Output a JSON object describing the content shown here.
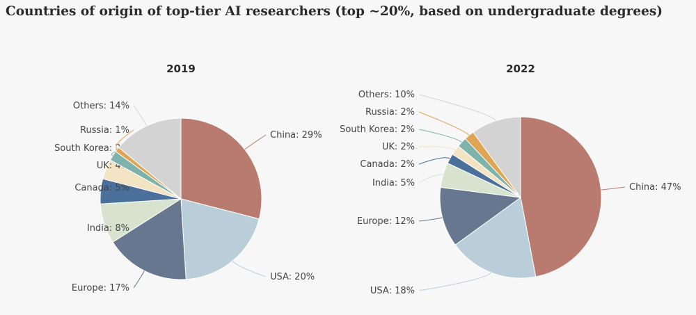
{
  "page": {
    "title": "Countries of origin of top-tier AI researchers (top ~20%, based on undergraduate degrees)"
  },
  "chart_data": [
    {
      "type": "pie",
      "title": "2019",
      "slices": [
        {
          "label": "China",
          "value": 29,
          "color": "#b97b70"
        },
        {
          "label": "USA",
          "value": 20,
          "color": "#b9ced9"
        },
        {
          "label": "Europe",
          "value": 17,
          "color": "#67778f"
        },
        {
          "label": "India",
          "value": 8,
          "color": "#d7e3cf"
        },
        {
          "label": "Canada",
          "value": 5,
          "color": "#4a709b"
        },
        {
          "label": "UK",
          "value": 4,
          "color": "#f2e3c2"
        },
        {
          "label": "South Korea",
          "value": 2,
          "color": "#7eb3ab"
        },
        {
          "label": "Russia",
          "value": 1,
          "color": "#e0a455"
        },
        {
          "label": "Others",
          "value": 14,
          "color": "#d3d3d3"
        }
      ]
    },
    {
      "type": "pie",
      "title": "2022",
      "slices": [
        {
          "label": "China",
          "value": 47,
          "color": "#b97b70"
        },
        {
          "label": "USA",
          "value": 18,
          "color": "#b9ced9"
        },
        {
          "label": "Europe",
          "value": 12,
          "color": "#67778f"
        },
        {
          "label": "India",
          "value": 5,
          "color": "#d7e3cf"
        },
        {
          "label": "Canada",
          "value": 2,
          "color": "#4a709b"
        },
        {
          "label": "UK",
          "value": 2,
          "color": "#f2e3c2"
        },
        {
          "label": "South Korea",
          "value": 2,
          "color": "#7eb3ab"
        },
        {
          "label": "Russia",
          "value": 2,
          "color": "#e0a455"
        },
        {
          "label": "Others",
          "value": 10,
          "color": "#d3d3d3"
        }
      ]
    }
  ]
}
